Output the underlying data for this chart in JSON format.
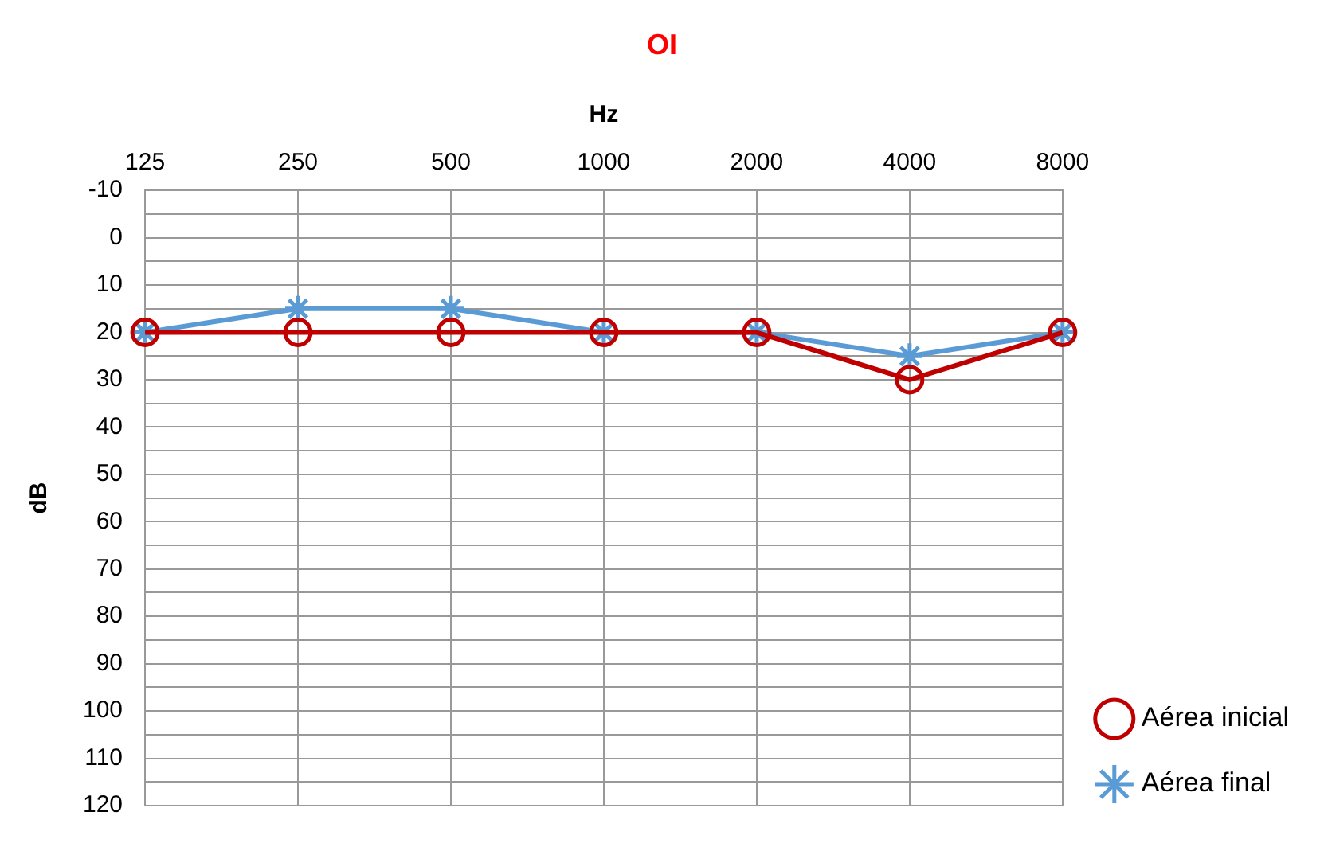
{
  "chart_data": {
    "type": "line",
    "title": "OI",
    "xlabel": "Hz",
    "ylabel": "dB",
    "categories": [
      "125",
      "250",
      "500",
      "1000",
      "2000",
      "4000",
      "8000"
    ],
    "ylim": [
      120,
      -10
    ],
    "yticks": [
      -10,
      {
        "value": -5,
        "label": null
      },
      0,
      {
        "value": 5,
        "label": null
      },
      10,
      {
        "value": 15,
        "label": null
      },
      20,
      {
        "value": 25,
        "label": null
      },
      30,
      {
        "value": 35,
        "label": null
      },
      40,
      {
        "value": 45,
        "label": null
      },
      50,
      {
        "value": 55,
        "label": null
      },
      60,
      {
        "value": 65,
        "label": null
      },
      70,
      {
        "value": 75,
        "label": null
      },
      80,
      {
        "value": 85,
        "label": null
      },
      90,
      {
        "value": 95,
        "label": null
      },
      100,
      {
        "value": 105,
        "label": null
      },
      110,
      {
        "value": 115,
        "label": null
      },
      120
    ],
    "grid": true,
    "legend": "right",
    "line_style": "solid",
    "series": [
      {
        "name": "Aérea inicial",
        "color": "#c00000",
        "marker": "circle",
        "values": [
          20,
          20,
          20,
          20,
          20,
          30,
          20
        ]
      },
      {
        "name": "Aérea final",
        "color": "#5b9bd5",
        "marker": "cross",
        "values": [
          20,
          15,
          15,
          20,
          20,
          25,
          20
        ]
      }
    ]
  }
}
